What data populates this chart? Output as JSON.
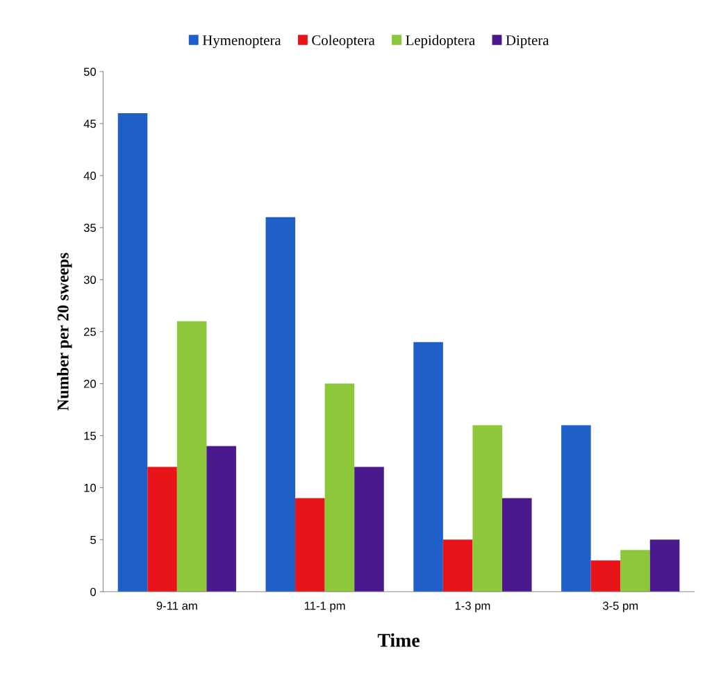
{
  "chart_data": {
    "type": "bar",
    "xlabel": "Time",
    "ylabel": "Number per 20 sweeps",
    "categories": [
      "9-11 am",
      "11-1 pm",
      "1-3 pm",
      "3-5 pm"
    ],
    "series": [
      {
        "name": "Hymenoptera",
        "color": "#1f5fc8",
        "values": [
          46,
          36,
          24,
          16
        ]
      },
      {
        "name": "Coleoptera",
        "color": "#e8141a",
        "values": [
          12,
          9,
          5,
          3
        ]
      },
      {
        "name": "Lepidoptera",
        "color": "#8cc83a",
        "values": [
          26,
          20,
          16,
          4
        ]
      },
      {
        "name": "Diptera",
        "color": "#4a1a8c",
        "values": [
          14,
          12,
          9,
          5
        ]
      }
    ],
    "ylim": [
      0,
      50
    ],
    "yticks": [
      0,
      5,
      10,
      15,
      20,
      25,
      30,
      35,
      40,
      45,
      50
    ],
    "grid": false,
    "legend": "top"
  }
}
